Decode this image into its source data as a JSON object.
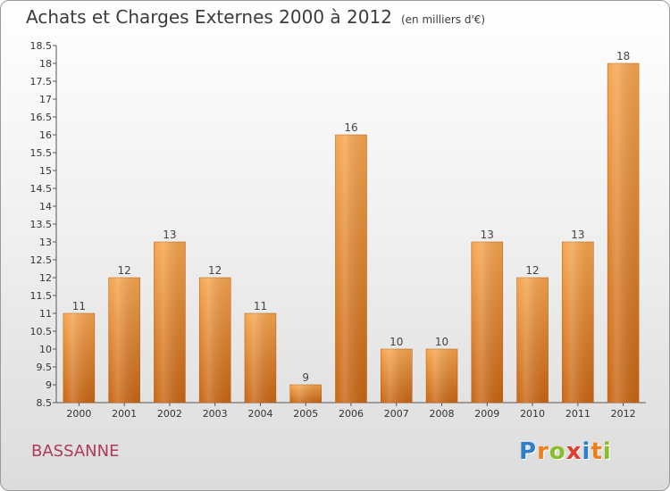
{
  "title": "Achats et Charges Externes 2000 à 2012",
  "unit_note": "(en milliers d'€)",
  "town": "BASSANNE",
  "logo": {
    "letters": [
      "P",
      "r",
      "o",
      "x",
      "i",
      "t",
      "i"
    ]
  },
  "colors": {
    "bar_light": "#f6a54e",
    "bar_dark": "#c86614",
    "logo_letters": [
      "#2f7fc8",
      "#ee7f1a",
      "#8bbd2a",
      "#e23c2f",
      "#2f7fc8",
      "#ee7f1a",
      "#8bbd2a"
    ]
  },
  "chart_data": {
    "type": "bar",
    "title": "Achats et Charges Externes 2000 à 2012",
    "xlabel": "",
    "ylabel": "",
    "categories": [
      "2000",
      "2001",
      "2002",
      "2003",
      "2004",
      "2005",
      "2006",
      "2007",
      "2008",
      "2009",
      "2010",
      "2011",
      "2012"
    ],
    "values": [
      11,
      12,
      13,
      12,
      11,
      9,
      16,
      10,
      10,
      13,
      12,
      13,
      18
    ],
    "data_labels": [
      "11",
      "12",
      "13",
      "12",
      "11",
      "9",
      "16",
      "10",
      "10",
      "13",
      "12",
      "13",
      "18"
    ],
    "ylim": [
      8.5,
      18.5
    ],
    "yticks": [
      "8.5",
      "9",
      "9.5",
      "10",
      "10.5",
      "11",
      "11.5",
      "12",
      "12.5",
      "13",
      "13.5",
      "14",
      "14.5",
      "15",
      "15.5",
      "16",
      "16.5",
      "17",
      "17.5",
      "18",
      "18.5"
    ],
    "grid": false,
    "legend": "none"
  }
}
